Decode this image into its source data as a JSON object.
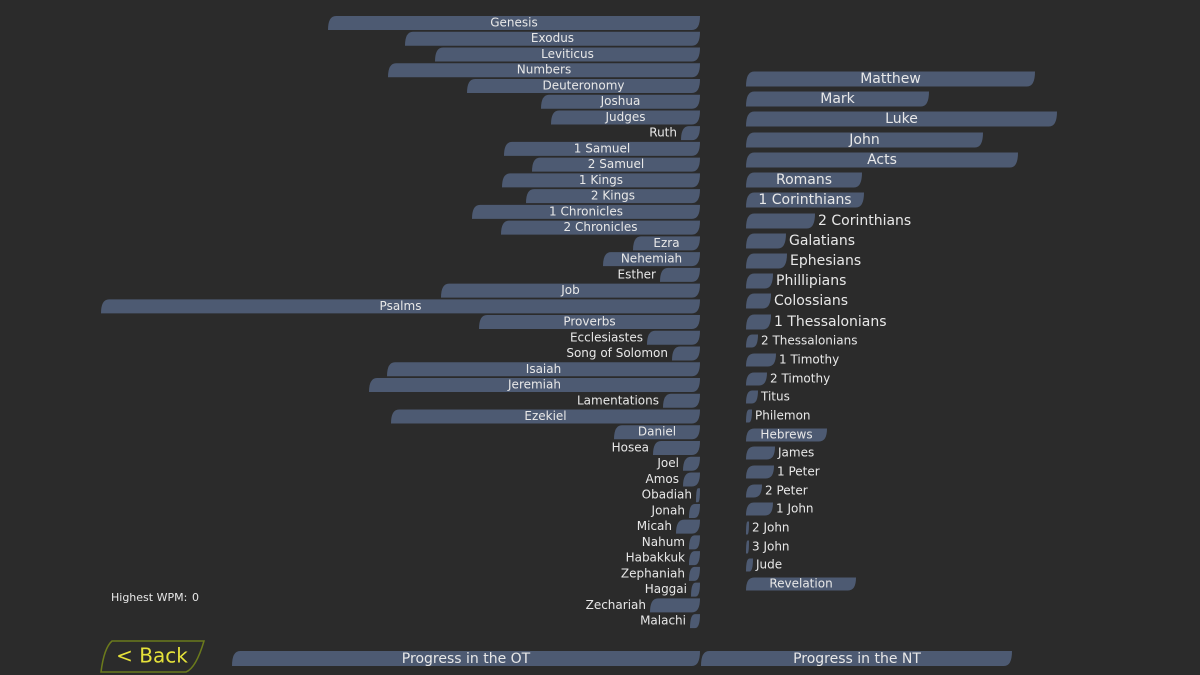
{
  "ot_books": [
    "Genesis",
    "Exodus",
    "Leviticus",
    "Numbers",
    "Deuteronomy",
    "Joshua",
    "Judges",
    "Ruth",
    "1 Samuel",
    "2 Samuel",
    "1 Kings",
    "2 Kings",
    "1 Chronicles",
    "2 Chronicles",
    "Ezra",
    "Nehemiah",
    "Esther",
    "Job",
    "Psalms",
    "Proverbs",
    "Ecclesiastes",
    "Song of Solomon",
    "Isaiah",
    "Jeremiah",
    "Lamentations",
    "Ezekiel",
    "Daniel",
    "Hosea",
    "Joel",
    "Amos",
    "Obadiah",
    "Jonah",
    "Micah",
    "Nahum",
    "Habakkuk",
    "Zephaniah",
    "Haggai",
    "Zechariah",
    "Malachi"
  ],
  "nt_books": [
    "Matthew",
    "Mark",
    "Luke",
    "John",
    "Acts",
    "Romans",
    "1 Corinthians",
    "2 Corinthians",
    "Galatians",
    "Ephesians",
    "Phillipians",
    "Colossians",
    "1 Thessalonians",
    "2 Thessalonians",
    "1 Timothy",
    "2 Timothy",
    "Titus",
    "Philemon",
    "Hebrews",
    "James",
    "1 Peter",
    "2 Peter",
    "1 John",
    "2 John",
    "3 John",
    "Jude",
    "Revelation"
  ],
  "highest_wpm": {
    "label": "Highest WPM:",
    "value": 0
  },
  "back_button": "< Back",
  "progress": {
    "ot": "Progress in the OT",
    "nt": "Progress in the NT"
  }
}
